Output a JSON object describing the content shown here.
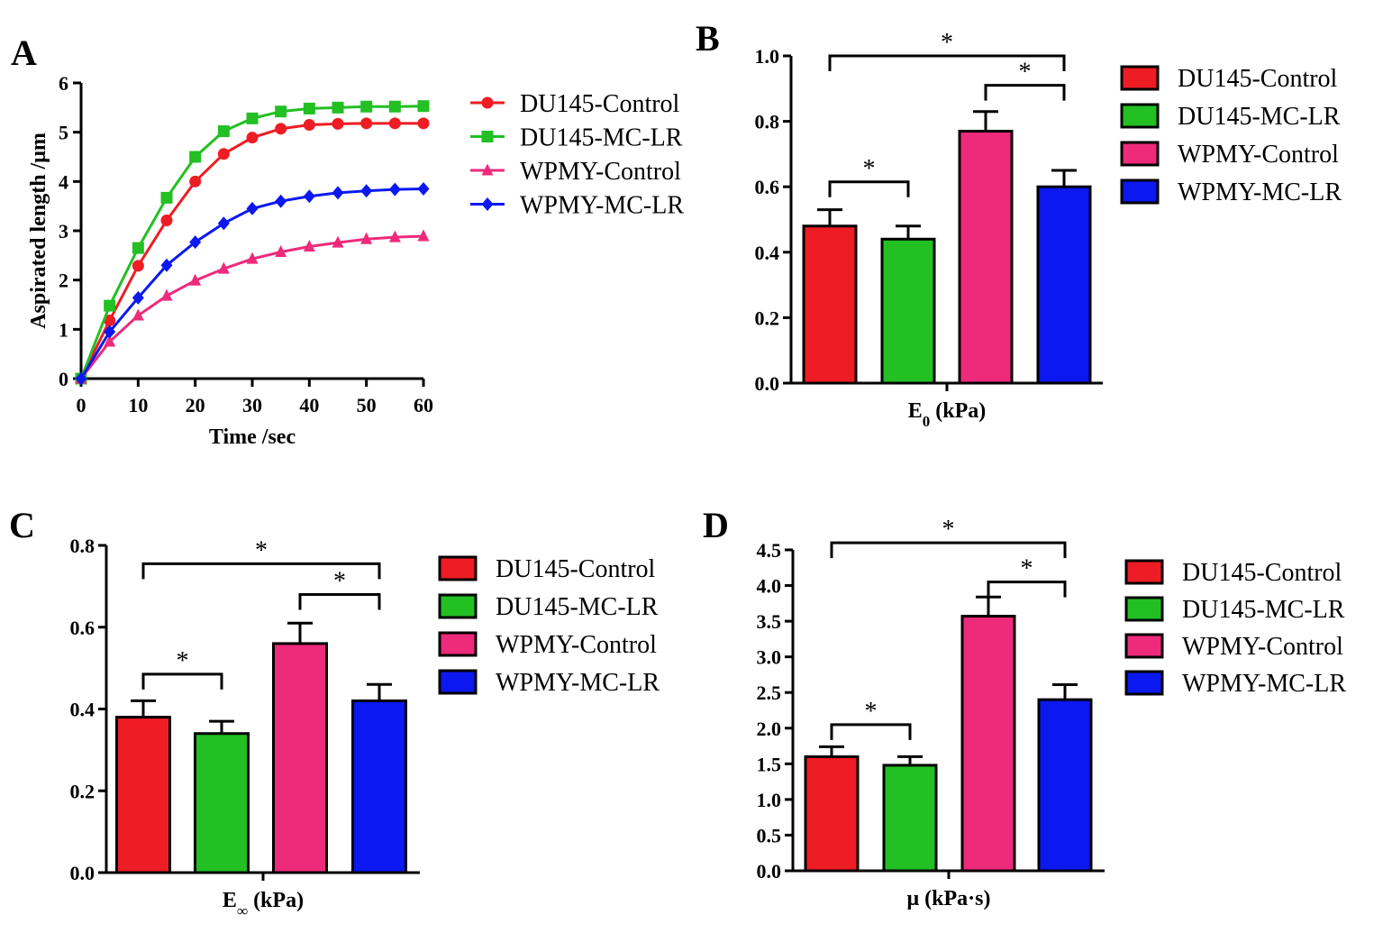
{
  "chart_data": [
    {
      "panel": "A",
      "type": "line",
      "xlabel": "Time /sec",
      "ylabel": "Aspirated length /μm",
      "xlim": [
        0,
        60
      ],
      "ylim": [
        0,
        6
      ],
      "xticks": [
        0,
        10,
        20,
        30,
        40,
        50,
        60
      ],
      "yticks": [
        0,
        1,
        2,
        3,
        4,
        5,
        6
      ],
      "x": [
        0,
        5,
        10,
        15,
        20,
        25,
        30,
        35,
        40,
        45,
        50,
        55,
        60
      ],
      "series": [
        {
          "name": "DU145-Control",
          "color": "#ee1c24",
          "marker": "circle",
          "values": [
            0,
            1.18,
            2.29,
            3.21,
            4.0,
            4.56,
            4.89,
            5.07,
            5.15,
            5.17,
            5.18,
            5.18,
            5.18
          ]
        },
        {
          "name": "DU145-MC-LR",
          "color": "#22c023",
          "marker": "square",
          "values": [
            0,
            1.48,
            2.65,
            3.67,
            4.5,
            5.02,
            5.28,
            5.42,
            5.48,
            5.5,
            5.52,
            5.52,
            5.53
          ]
        },
        {
          "name": "WPMY-Control",
          "color": "#ee2a7b",
          "marker": "triangle",
          "values": [
            0,
            0.75,
            1.28,
            1.68,
            1.99,
            2.23,
            2.43,
            2.57,
            2.68,
            2.76,
            2.83,
            2.87,
            2.89
          ]
        },
        {
          "name": "WPMY-MC-LR",
          "color": "#0b18f0",
          "marker": "diamond",
          "values": [
            0,
            0.95,
            1.64,
            2.3,
            2.77,
            3.15,
            3.45,
            3.6,
            3.7,
            3.77,
            3.81,
            3.84,
            3.85
          ]
        }
      ]
    },
    {
      "panel": "B",
      "type": "bar",
      "xlabel": "E",
      "xlabel_sub": "0",
      "xlabel_unit": " (kPa)",
      "ylim": [
        0,
        1.0
      ],
      "yticks": [
        "0.0",
        "0.2",
        "0.4",
        "0.6",
        "0.8",
        "1.0"
      ],
      "categories": [
        "DU145-Control",
        "DU145-MC-LR",
        "WPMY-Control",
        "WPMY-MC-LR"
      ],
      "colors": [
        "#ee1c24",
        "#22c023",
        "#ee2a7b",
        "#0b18f0"
      ],
      "values": [
        0.48,
        0.44,
        0.77,
        0.6
      ],
      "errors": [
        0.05,
        0.04,
        0.06,
        0.05
      ],
      "significance": [
        {
          "from": 0,
          "to": 3,
          "label": "*",
          "level": 1.0
        },
        {
          "from": 2,
          "to": 3,
          "label": "*",
          "level": 0.91
        },
        {
          "from": 0,
          "to": 1,
          "label": "*",
          "level": 0.615
        }
      ]
    },
    {
      "panel": "C",
      "type": "bar",
      "xlabel": "E",
      "xlabel_sub": "∞",
      "xlabel_unit": " (kPa)",
      "ylim": [
        0,
        0.8
      ],
      "yticks": [
        "0.0",
        "0.2",
        "0.4",
        "0.6",
        "0.8"
      ],
      "categories": [
        "DU145-Control",
        "DU145-MC-LR",
        "WPMY-Control",
        "WPMY-MC-LR"
      ],
      "colors": [
        "#ee1c24",
        "#22c023",
        "#ee2a7b",
        "#0b18f0"
      ],
      "values": [
        0.38,
        0.34,
        0.56,
        0.42
      ],
      "errors": [
        0.04,
        0.03,
        0.05,
        0.04
      ],
      "significance": [
        {
          "from": 0,
          "to": 3,
          "label": "*",
          "level": 0.755
        },
        {
          "from": 2,
          "to": 3,
          "label": "*",
          "level": 0.68
        },
        {
          "from": 0,
          "to": 1,
          "label": "*",
          "level": 0.485
        }
      ]
    },
    {
      "panel": "D",
      "type": "bar",
      "xlabel": "μ (kPa·s)",
      "xlabel_sub": "",
      "xlabel_unit": "",
      "ylim": [
        0,
        4.5
      ],
      "yticks": [
        "0.0",
        "0.5",
        "1.0",
        "1.5",
        "2.0",
        "2.5",
        "3.0",
        "3.5",
        "4.0",
        "4.5"
      ],
      "categories": [
        "DU145-Control",
        "DU145-MC-LR",
        "WPMY-Control",
        "WPMY-MC-LR"
      ],
      "colors": [
        "#ee1c24",
        "#22c023",
        "#ee2a7b",
        "#0b18f0"
      ],
      "values": [
        1.6,
        1.48,
        3.57,
        2.4
      ],
      "errors": [
        0.14,
        0.12,
        0.27,
        0.21
      ],
      "significance": [
        {
          "from": 0,
          "to": 3,
          "label": "*",
          "level": 4.6
        },
        {
          "from": 2,
          "to": 3,
          "label": "*",
          "level": 4.05
        },
        {
          "from": 0,
          "to": 1,
          "label": "*",
          "level": 2.05
        }
      ]
    }
  ]
}
